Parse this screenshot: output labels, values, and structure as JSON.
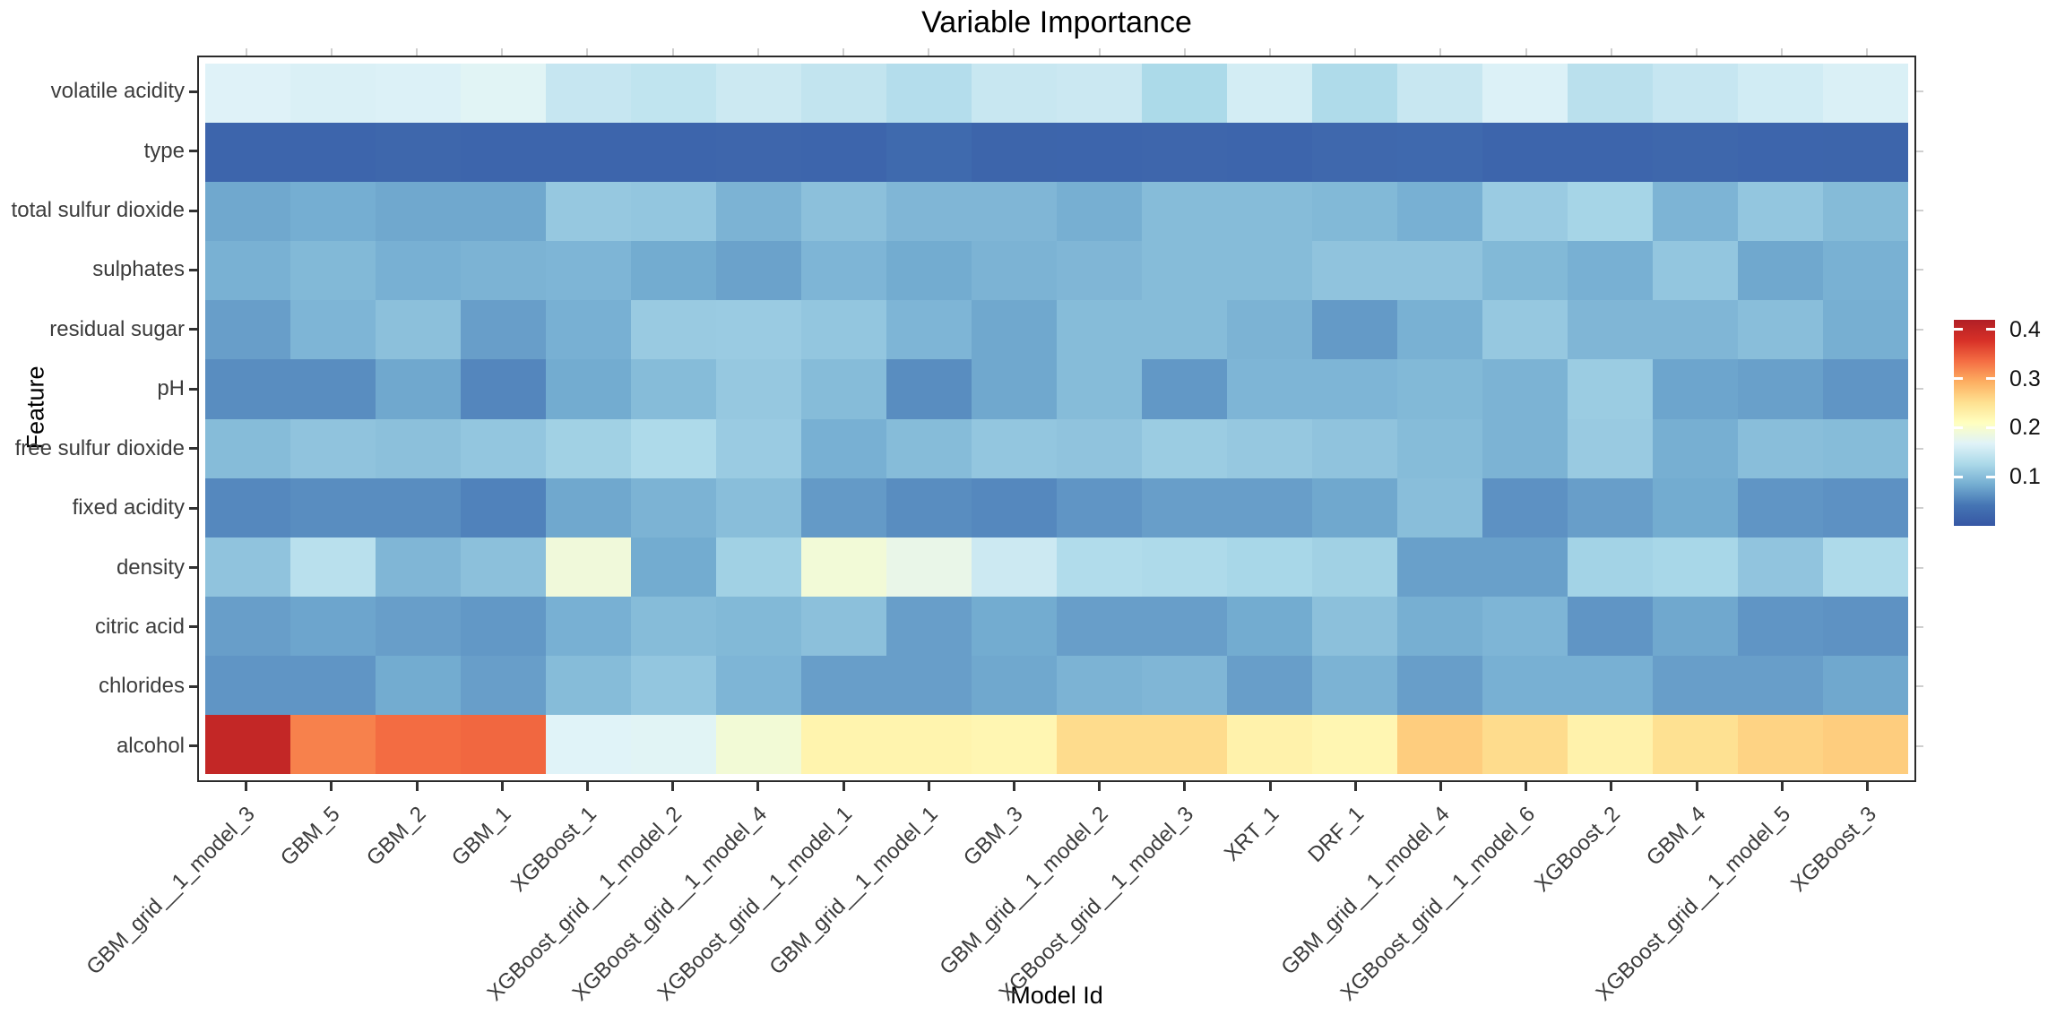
{
  "chart_data": {
    "type": "heatmap",
    "title": "Variable Importance",
    "xlabel": "Model Id",
    "ylabel": "Feature",
    "grid": false,
    "legend_position": "right",
    "features": [
      "volatile acidity",
      "type",
      "total sulfur dioxide",
      "sulphates",
      "residual sugar",
      "pH",
      "free sulfur dioxide",
      "fixed acidity",
      "density",
      "citric acid",
      "chlorides",
      "alcohol"
    ],
    "categories": [
      "GBM_grid__1_model_3",
      "GBM_5",
      "GBM_2",
      "GBM_1",
      "XGBoost_1",
      "XGBoost_grid__1_model_2",
      "XGBoost_grid__1_model_4",
      "XGBoost_grid__1_model_1",
      "GBM_grid__1_model_1",
      "GBM_3",
      "GBM_grid__1_model_2",
      "XGBoost_grid__1_model_3",
      "XRT_1",
      "DRF_1",
      "GBM_grid__1_model_4",
      "XGBoost_grid__1_model_6",
      "XGBoost_2",
      "GBM_4",
      "XGBoost_grid__1_model_5",
      "XGBoost_3"
    ],
    "values": [
      [
        0.167,
        0.163,
        0.165,
        0.17,
        0.147,
        0.143,
        0.152,
        0.144,
        0.133,
        0.149,
        0.151,
        0.127,
        0.158,
        0.129,
        0.149,
        0.165,
        0.138,
        0.147,
        0.156,
        0.163
      ],
      [
        0.02,
        0.02,
        0.022,
        0.02,
        0.02,
        0.02,
        0.021,
        0.02,
        0.026,
        0.019,
        0.02,
        0.021,
        0.02,
        0.024,
        0.025,
        0.02,
        0.02,
        0.022,
        0.02,
        0.019
      ],
      [
        0.08,
        0.085,
        0.08,
        0.08,
        0.11,
        0.108,
        0.09,
        0.102,
        0.093,
        0.093,
        0.086,
        0.098,
        0.098,
        0.095,
        0.087,
        0.113,
        0.122,
        0.091,
        0.108,
        0.097
      ],
      [
        0.088,
        0.095,
        0.087,
        0.09,
        0.092,
        0.083,
        0.076,
        0.092,
        0.083,
        0.09,
        0.093,
        0.098,
        0.098,
        0.105,
        0.105,
        0.095,
        0.087,
        0.108,
        0.08,
        0.088
      ],
      [
        0.073,
        0.092,
        0.102,
        0.073,
        0.087,
        0.112,
        0.113,
        0.108,
        0.092,
        0.08,
        0.098,
        0.098,
        0.09,
        0.07,
        0.088,
        0.11,
        0.093,
        0.093,
        0.1,
        0.086
      ],
      [
        0.06,
        0.06,
        0.08,
        0.055,
        0.083,
        0.098,
        0.11,
        0.098,
        0.06,
        0.08,
        0.098,
        0.068,
        0.092,
        0.092,
        0.095,
        0.09,
        0.114,
        0.078,
        0.074,
        0.066
      ],
      [
        0.098,
        0.105,
        0.102,
        0.108,
        0.118,
        0.128,
        0.113,
        0.087,
        0.098,
        0.108,
        0.105,
        0.114,
        0.11,
        0.105,
        0.098,
        0.09,
        0.112,
        0.086,
        0.1,
        0.098
      ],
      [
        0.056,
        0.06,
        0.06,
        0.052,
        0.08,
        0.09,
        0.1,
        0.07,
        0.06,
        0.056,
        0.066,
        0.073,
        0.073,
        0.08,
        0.1,
        0.063,
        0.073,
        0.083,
        0.066,
        0.063
      ],
      [
        0.105,
        0.137,
        0.093,
        0.102,
        0.19,
        0.083,
        0.118,
        0.192,
        0.18,
        0.152,
        0.131,
        0.128,
        0.124,
        0.118,
        0.074,
        0.074,
        0.12,
        0.124,
        0.106,
        0.128
      ],
      [
        0.073,
        0.078,
        0.073,
        0.068,
        0.087,
        0.098,
        0.095,
        0.102,
        0.073,
        0.083,
        0.073,
        0.073,
        0.083,
        0.102,
        0.086,
        0.092,
        0.066,
        0.08,
        0.066,
        0.064
      ],
      [
        0.066,
        0.066,
        0.083,
        0.073,
        0.098,
        0.108,
        0.092,
        0.073,
        0.073,
        0.08,
        0.09,
        0.093,
        0.073,
        0.09,
        0.073,
        0.087,
        0.087,
        0.073,
        0.073,
        0.08
      ],
      [
        0.4,
        0.323,
        0.337,
        0.34,
        0.168,
        0.17,
        0.193,
        0.225,
        0.225,
        0.222,
        0.255,
        0.255,
        0.228,
        0.222,
        0.268,
        0.255,
        0.228,
        0.25,
        0.263,
        0.268
      ]
    ],
    "colormap": {
      "name": "RdYlBu-reversed",
      "domain": [
        0,
        0.42
      ],
      "stops": [
        "#3657a4",
        "#4575b4",
        "#74add1",
        "#abd9e9",
        "#e0f3f8",
        "#ffffbf",
        "#fee090",
        "#fdae61",
        "#f46d43",
        "#d73027",
        "#b11f26"
      ]
    },
    "legend": {
      "ticks": [
        "0.1",
        "0.2",
        "0.3",
        "0.4"
      ],
      "tick_values": [
        0.1,
        0.2,
        0.3,
        0.4
      ]
    }
  }
}
